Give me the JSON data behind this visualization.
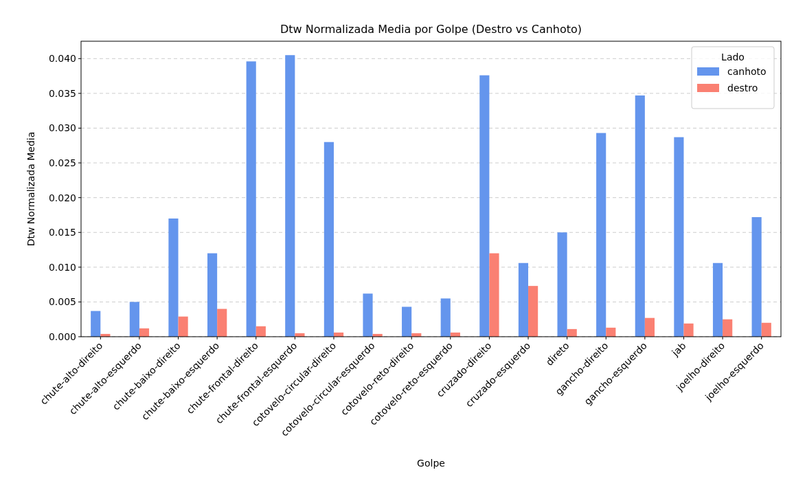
{
  "chart_data": {
    "type": "bar",
    "title": "Dtw Normalizada Media por Golpe (Destro vs Canhoto)",
    "xlabel": "Golpe",
    "ylabel": "Dtw Normalizada Media",
    "legend_title": "Lado",
    "categories": [
      "chute-alto-direito",
      "chute-alto-esquerdo",
      "chute-baixo-direito",
      "chute-baixo-esquerdo",
      "chute-frontal-direito",
      "chute-frontal-esquerdo",
      "cotovelo-circular-direito",
      "cotovelo-circular-esquerdo",
      "cotovelo-reto-direito",
      "cotovelo-reto-esquerdo",
      "cruzado-direito",
      "cruzado-esquerdo",
      "direto",
      "gancho-direito",
      "gancho-esquerdo",
      "jab",
      "joelho-direito",
      "joelho-esquerdo"
    ],
    "series": [
      {
        "name": "canhoto",
        "color": "#6495ed",
        "values": [
          0.0037,
          0.005,
          0.017,
          0.012,
          0.0396,
          0.0405,
          0.028,
          0.0062,
          0.0043,
          0.0055,
          0.0376,
          0.0106,
          0.015,
          0.0293,
          0.0347,
          0.0287,
          0.0106,
          0.0172
        ]
      },
      {
        "name": "destro",
        "color": "#fa8072",
        "values": [
          0.0004,
          0.0012,
          0.0029,
          0.004,
          0.0015,
          0.0005,
          0.0006,
          0.0004,
          0.0005,
          0.0006,
          0.012,
          0.0073,
          0.0011,
          0.0013,
          0.0027,
          0.0019,
          0.0025,
          0.002
        ]
      }
    ],
    "ylim": [
      0,
      0.0425
    ],
    "yticks": [
      {
        "value": 0,
        "label": "0.000"
      },
      {
        "value": 0.005,
        "label": "0.005"
      },
      {
        "value": 0.01,
        "label": "0.010"
      },
      {
        "value": 0.015,
        "label": "0.015"
      },
      {
        "value": 0.02,
        "label": "0.020"
      },
      {
        "value": 0.025,
        "label": "0.025"
      },
      {
        "value": 0.03,
        "label": "0.030"
      },
      {
        "value": 0.035,
        "label": "0.035"
      },
      {
        "value": 0.04,
        "label": "0.040"
      }
    ],
    "grid": "y",
    "legend": "top right"
  }
}
